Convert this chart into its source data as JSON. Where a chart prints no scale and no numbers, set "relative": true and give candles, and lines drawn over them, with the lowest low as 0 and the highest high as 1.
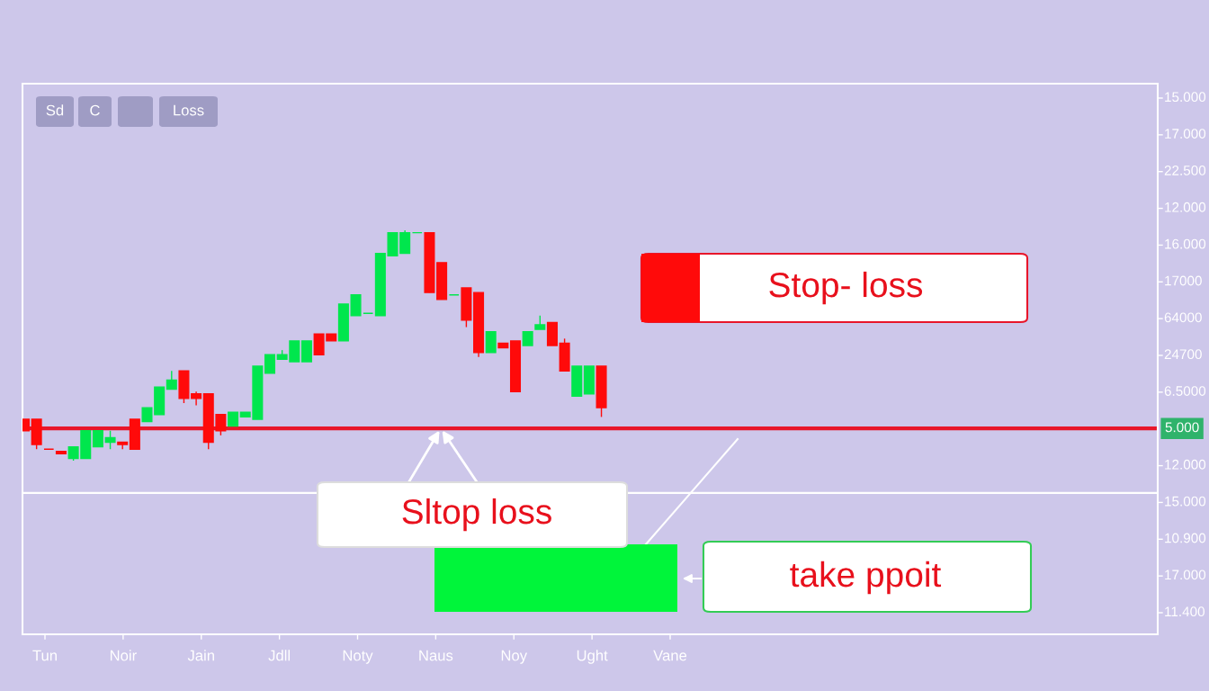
{
  "chart_data": {
    "type": "candlestick",
    "relative": true,
    "categories": [
      null,
      null,
      null,
      null,
      null,
      null,
      null,
      null,
      null,
      null,
      null,
      null,
      null,
      null,
      null,
      null,
      null,
      null,
      null,
      null,
      null,
      null,
      null,
      null,
      null,
      null,
      null,
      null,
      null,
      null,
      null,
      null,
      null,
      null,
      null,
      null,
      null,
      null,
      null,
      null,
      null,
      null,
      null,
      null,
      null,
      null,
      null,
      null
    ],
    "ohlc": [
      [
        0.18,
        0.18,
        0.13,
        0.13
      ],
      [
        0.18,
        0.18,
        0.05,
        0.07
      ],
      [
        0.05,
        0.05,
        0.05,
        0.05
      ],
      [
        0.04,
        0.04,
        0.03,
        0.03
      ],
      [
        0.01,
        0.06,
        0,
        0.06
      ],
      [
        0.01,
        0.13,
        0.01,
        0.13
      ],
      [
        0.06,
        0.13,
        0.06,
        0.13
      ],
      [
        0.08,
        0.13,
        0.05,
        0.1
      ],
      [
        0.08,
        0.08,
        0.05,
        0.07
      ],
      [
        0.18,
        0.18,
        0.05,
        0.05
      ],
      [
        0.17,
        0.23,
        0.17,
        0.23
      ],
      [
        0.2,
        0.32,
        0.2,
        0.32
      ],
      [
        0.31,
        0.39,
        0.31,
        0.35
      ],
      [
        0.39,
        0.39,
        0.25,
        0.27
      ],
      [
        0.29,
        0.3,
        0.24,
        0.27
      ],
      [
        0.29,
        0.29,
        0.05,
        0.08
      ],
      [
        0.2,
        0.2,
        0.11,
        0.13
      ],
      [
        0.15,
        0.21,
        0.15,
        0.21
      ],
      [
        0.19,
        0.21,
        0.19,
        0.21
      ],
      [
        0.18,
        0.41,
        0.18,
        0.41
      ],
      [
        0.38,
        0.46,
        0.38,
        0.46
      ],
      [
        0.44,
        0.48,
        0.44,
        0.46
      ],
      [
        0.43,
        0.52,
        0.43,
        0.52
      ],
      [
        0.43,
        0.52,
        0.43,
        0.52
      ],
      [
        0.55,
        0.55,
        0.46,
        0.46
      ],
      [
        0.55,
        0.55,
        0.52,
        0.52
      ],
      [
        0.52,
        0.68,
        0.52,
        0.68
      ],
      [
        0.63,
        0.72,
        0.63,
        0.72
      ],
      [
        0.64,
        0.64,
        0.64,
        0.64
      ],
      [
        0.63,
        0.9,
        0.63,
        0.9
      ],
      [
        0.89,
        0.99,
        0.89,
        0.99
      ],
      [
        0.9,
        1,
        0.9,
        0.99
      ],
      [
        0.99,
        0.99,
        0.99,
        0.99
      ],
      [
        0.99,
        0.99,
        0.73,
        0.73
      ],
      [
        0.86,
        0.86,
        0.7,
        0.7
      ],
      [
        0.72,
        0.72,
        0.72,
        0.72
      ],
      [
        0.75,
        0.75,
        0.58,
        0.61
      ],
      [
        0.73,
        0.73,
        0.45,
        0.47
      ],
      [
        0.47,
        0.56,
        0.47,
        0.56
      ],
      [
        0.51,
        0.51,
        0.49,
        0.49
      ],
      [
        0.52,
        0.52,
        0.3,
        0.3
      ],
      [
        0.5,
        0.56,
        0.5,
        0.56
      ],
      [
        0.57,
        0.63,
        0.57,
        0.59
      ],
      [
        0.6,
        0.6,
        0.5,
        0.5
      ],
      [
        0.51,
        0.53,
        0.39,
        0.39
      ],
      [
        0.28,
        0.41,
        0.28,
        0.41
      ],
      [
        0.29,
        0.41,
        0.29,
        0.41
      ],
      [
        0.41,
        0.41,
        0.19,
        0.23
      ]
    ],
    "colors": [
      "#ff0a0a",
      "#ff0a0a",
      "#ff0a0a",
      "#ff0a0a",
      "#00e64d",
      "#00e64d",
      "#00e64d",
      "#00e64d",
      "#ff0a0a",
      "#ff0a0a",
      "#00e64d",
      "#00e64d",
      "#00e64d",
      "#ff0a0a",
      "#ff0a0a",
      "#ff0a0a",
      "#ff0a0a",
      "#00e64d",
      "#00e64d",
      "#00e64d",
      "#00e64d",
      "#00e64d",
      "#00e64d",
      "#00e64d",
      "#ff0a0a",
      "#ff0a0a",
      "#00e64d",
      "#00e64d",
      "#00e64d",
      "#00e64d",
      "#00e64d",
      "#00e64d",
      "#00e64d",
      "#ff0a0a",
      "#ff0a0a",
      "#00e64d",
      "#ff0a0a",
      "#ff0a0a",
      "#00e64d",
      "#ff0a0a",
      "#ff0a0a",
      "#00e64d",
      "#00e64d",
      "#ff0a0a",
      "#ff0a0a",
      "#00e64d",
      "#00e64d",
      "#ff0a0a"
    ],
    "ref_lines": [
      {
        "axis": "y",
        "value": 0.14,
        "color": "#e8162a"
      },
      {
        "axis": "y",
        "value": -0.14,
        "color": "#ffffff"
      }
    ],
    "annotations": [
      "Sd",
      "C",
      "Loss",
      "Stop- loss",
      {
        "text": "Sltop loss",
        "y": 0.14
      },
      "take ppoit",
      "5.000",
      "15.000",
      "17.000",
      "22.500",
      "12.000",
      "16.000",
      "17000",
      "64000",
      "24700",
      "6.5000",
      "12.000",
      "15.000",
      "10.900",
      "17.000",
      "11.400",
      "Tun",
      "Noir",
      "Jain",
      "Jdll",
      "Noty",
      "Naus",
      "Noy",
      "Ught",
      "Vane"
    ]
  }
}
